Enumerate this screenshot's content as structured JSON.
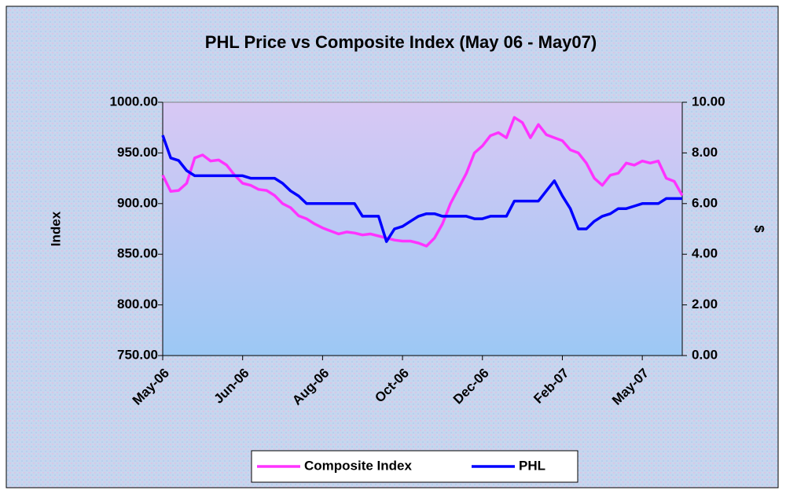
{
  "chart_data": {
    "type": "line",
    "title": "PHL Price vs Composite Index (May 06 - May07)",
    "y_label": "Index",
    "y2_label": "$",
    "categories": [
      "May-06",
      null,
      null,
      null,
      null,
      null,
      null,
      null,
      null,
      null,
      "Jun-06",
      null,
      null,
      null,
      null,
      null,
      null,
      null,
      null,
      null,
      "Aug-06",
      null,
      null,
      null,
      null,
      null,
      null,
      null,
      null,
      null,
      "Oct-06",
      null,
      null,
      null,
      null,
      null,
      null,
      null,
      null,
      null,
      "Dec-06",
      null,
      null,
      null,
      null,
      null,
      null,
      null,
      null,
      null,
      "Feb-07",
      null,
      null,
      null,
      null,
      null,
      null,
      null,
      null,
      null,
      "May-07",
      null,
      null,
      null,
      null,
      null
    ],
    "series": [
      {
        "name": "Composite Index",
        "color": "#ff33ff",
        "values": [
          928,
          912,
          913,
          920,
          945,
          948,
          942,
          943,
          938,
          928,
          920,
          918,
          914,
          913,
          908,
          900,
          896,
          888,
          885,
          880,
          876,
          873,
          870,
          872,
          871,
          869,
          870,
          868,
          866,
          864,
          863,
          863,
          861,
          858,
          866,
          880,
          900,
          915,
          930,
          950,
          957,
          967,
          970,
          965,
          985,
          980,
          965,
          978,
          968,
          965,
          962,
          953,
          950,
          940,
          925,
          918,
          928,
          930,
          940,
          938,
          942,
          940,
          942,
          925,
          922,
          908
        ]
      },
      {
        "name": "PHL",
        "color": "#0000ff",
        "axis": "y2",
        "values": [
          8.7,
          7.8,
          7.7,
          7.3,
          7.1,
          7.1,
          7.1,
          7.1,
          7.1,
          7.1,
          7.1,
          7.0,
          7.0,
          7.0,
          7.0,
          6.8,
          6.5,
          6.3,
          6.0,
          6.0,
          6.0,
          6.0,
          6.0,
          6.0,
          6.0,
          5.5,
          5.5,
          5.5,
          4.5,
          5.0,
          5.1,
          5.3,
          5.5,
          5.6,
          5.6,
          5.5,
          5.5,
          5.5,
          5.5,
          5.4,
          5.4,
          5.5,
          5.5,
          5.5,
          6.1,
          6.1,
          6.1,
          6.1,
          6.5,
          6.9,
          6.3,
          5.8,
          5.0,
          5.0,
          5.3,
          5.5,
          5.6,
          5.8,
          5.8,
          5.9,
          6.0,
          6.0,
          6.0,
          6.2,
          6.2,
          6.2
        ]
      }
    ],
    "ylim": [
      750,
      1000
    ],
    "yticks": [
      {
        "value": 750,
        "label": "750.00"
      },
      {
        "value": 800,
        "label": "800.00"
      },
      {
        "value": 850,
        "label": "850.00"
      },
      {
        "value": 900,
        "label": "900.00"
      },
      {
        "value": 950,
        "label": "950.00"
      },
      {
        "value": 1000,
        "label": "1000.00"
      }
    ],
    "y2lim": [
      0,
      10
    ],
    "y2ticks": [
      {
        "value": 0,
        "label": "0.00"
      },
      {
        "value": 2,
        "label": "2.00"
      },
      {
        "value": 4,
        "label": "4.00"
      },
      {
        "value": 6,
        "label": "6.00"
      },
      {
        "value": 8,
        "label": "8.00"
      },
      {
        "value": 10,
        "label": "10.00"
      }
    ],
    "grid": false,
    "legend": "bottom"
  }
}
